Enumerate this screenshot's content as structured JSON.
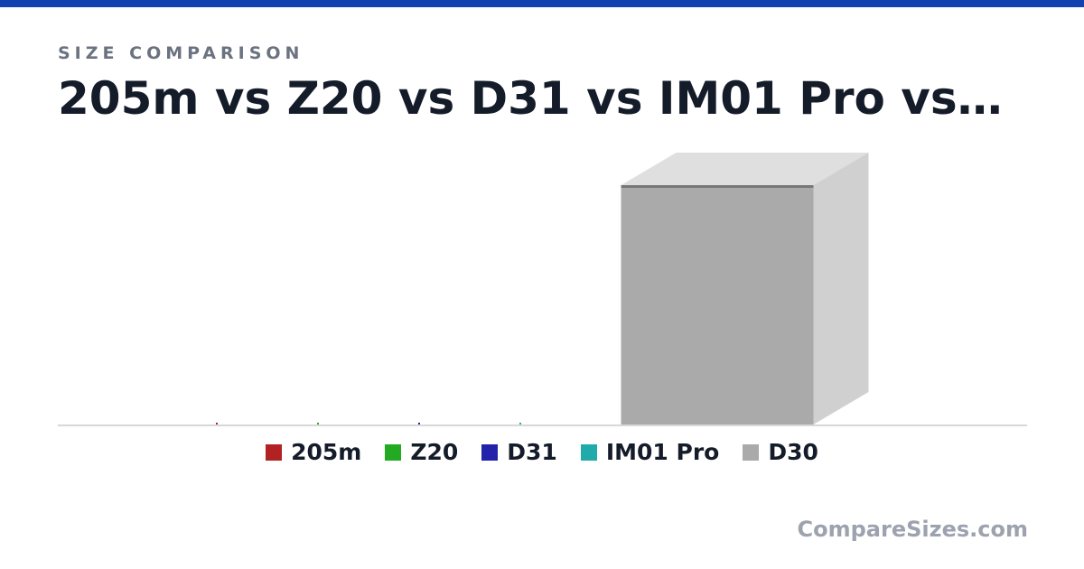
{
  "header": {
    "eyebrow": "SIZE COMPARISON",
    "title": "205m vs Z20 vs D31 vs IM01 Pro vs…"
  },
  "brand": "CompareSizes.com",
  "chart_data": {
    "type": "bar",
    "categories": [
      "205m",
      "Z20",
      "D31",
      "IM01 Pro",
      "D30"
    ],
    "series": [
      {
        "name": "205m",
        "value": 0.6,
        "color": "#b22222"
      },
      {
        "name": "Z20",
        "value": 0.6,
        "color": "#22aa22"
      },
      {
        "name": "D31",
        "value": 0.6,
        "color": "#2222aa"
      },
      {
        "name": "IM01 Pro",
        "value": 0.6,
        "color": "#20aaaa"
      },
      {
        "name": "D30",
        "value": 100,
        "color": "#aaaaaa"
      }
    ],
    "ylim": [
      0,
      100
    ],
    "grid": false,
    "legend": "bottom"
  }
}
